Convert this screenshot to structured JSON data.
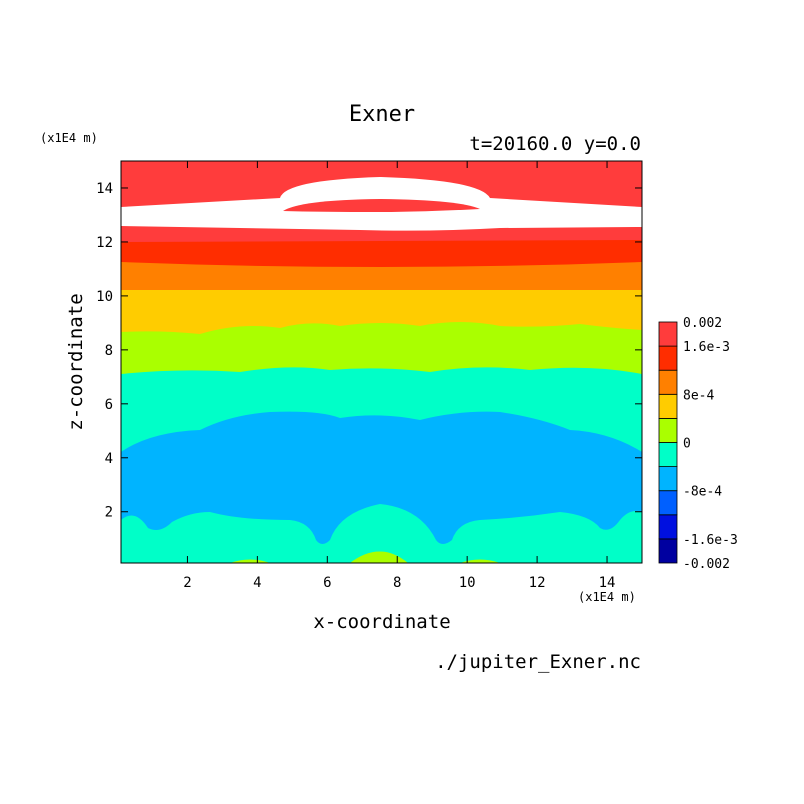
{
  "chart_data": {
    "type": "contour",
    "title": "Exner",
    "subtitle": "t=20160.0 y=0.0",
    "xlabel": "x-coordinate",
    "ylabel": "z-coordinate",
    "x_unit": "(x1E4 m)",
    "y_unit": "(x1E4 m)",
    "xlim": [
      0.1,
      15
    ],
    "ylim": [
      0.1,
      15
    ],
    "x_ticks": [
      2,
      4,
      6,
      8,
      10,
      12,
      14
    ],
    "y_ticks": [
      2,
      4,
      6,
      8,
      10,
      12,
      14
    ],
    "source_file": "./jupiter_Exner.nc",
    "colorbar": {
      "levels": [
        -0.002,
        -0.0016,
        -0.0012,
        -0.0008,
        -0.0004,
        0,
        0.0004,
        0.0008,
        0.0012,
        0.0016,
        0.002
      ],
      "colors": [
        "#0000a0",
        "#0010e0",
        "#0060ff",
        "#00b4ff",
        "#00ffc8",
        "#aaff00",
        "#ffcc00",
        "#ff8000",
        "#ff2d00",
        "#ff3c3c"
      ],
      "tick_labels": [
        {
          "value": 0.002,
          "label": "0.002"
        },
        {
          "value": 0.0016,
          "label": "1.6e-3"
        },
        {
          "value": 0.0008,
          "label": "8e-4"
        },
        {
          "value": 0,
          "label": "0"
        },
        {
          "value": -0.0008,
          "label": "-8e-4"
        },
        {
          "value": -0.0016,
          "label": "-1.6e-3"
        },
        {
          "value": -0.002,
          "label": "-0.002"
        }
      ]
    }
  }
}
